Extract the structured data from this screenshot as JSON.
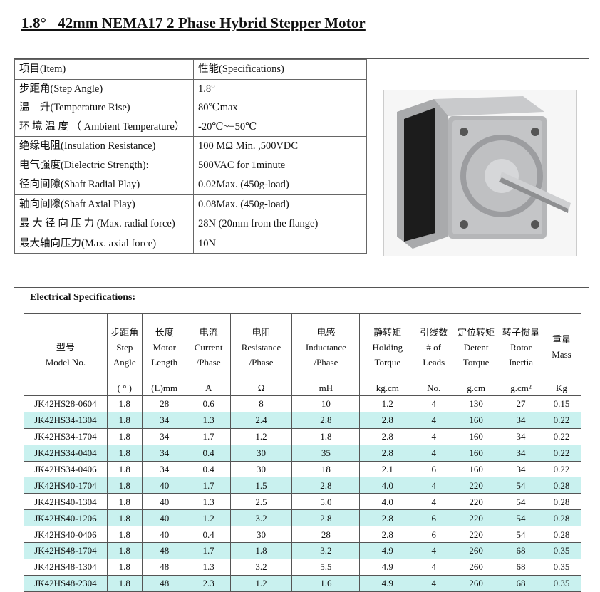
{
  "title": "1.8°   42mm NEMA17 2 Phase Hybrid Stepper Motor",
  "spec_table": {
    "header": [
      "项目(Item)",
      "性能(Specifications)"
    ],
    "rows": [
      {
        "item": "步距角(Step Angle)",
        "value": "1.8°"
      },
      {
        "item": "温　升(Temperature Rise)",
        "value": "80℃max"
      },
      {
        "item": "环 境 温 度 （ Ambient Temperature）",
        "value": "-20℃~+50℃"
      },
      {
        "item": "绝缘电阻(Insulation Resistance)",
        "value": "100 MΩ  Min. ,500VDC"
      },
      {
        "item": "电气强度(Dielectric Strength):",
        "value": "500VAC for 1minute"
      },
      {
        "item": "径向间隙(Shaft Radial Play)",
        "value": "0.02Max. (450g-load)"
      },
      {
        "item": "轴向间隙(Shaft Axial Play)",
        "value": "0.08Max. (450g-load)"
      },
      {
        "item": "最 大 径 向 压 力 (Max. radial force)",
        "value": "28N (20mm from the flange)"
      },
      {
        "item": "最大轴向压力(Max. axial force)",
        "value": "10N"
      }
    ]
  },
  "product_image": "stepper-motor-photo",
  "electrical": {
    "label": "Electrical Specifications:",
    "headers": [
      {
        "cn": "型号",
        "en": "Model No.",
        "unit": ""
      },
      {
        "cn": "步距角",
        "en": "Step Angle",
        "unit": "( ° )"
      },
      {
        "cn": "长度",
        "en": "Motor Length",
        "unit": "(L)mm"
      },
      {
        "cn": "电流",
        "en": "Current /Phase",
        "unit": "A"
      },
      {
        "cn": "电阻",
        "en": "Resistance /Phase",
        "unit": "Ω"
      },
      {
        "cn": "电感",
        "en": "Inductance /Phase",
        "unit": "mH"
      },
      {
        "cn": "静转矩",
        "en": "Holding Torque",
        "unit": "kg.cm"
      },
      {
        "cn": "引线数",
        "en": "# of Leads",
        "unit": "No."
      },
      {
        "cn": "定位转矩",
        "en": "Detent Torque",
        "unit": "g.cm"
      },
      {
        "cn": "转子惯量",
        "en": "Rotor Inertia",
        "unit": "g.cm²"
      },
      {
        "cn": "重量",
        "en": "Mass",
        "unit": "Kg"
      }
    ],
    "rows": [
      [
        "JK42HS28-0604",
        "1.8",
        "28",
        "0.6",
        "8",
        "10",
        "1.2",
        "4",
        "130",
        "27",
        "0.15"
      ],
      [
        "JK42HS34-1304",
        "1.8",
        "34",
        "1.3",
        "2.4",
        "2.8",
        "2.8",
        "4",
        "160",
        "34",
        "0.22"
      ],
      [
        "JK42HS34-1704",
        "1.8",
        "34",
        "1.7",
        "1.2",
        "1.8",
        "2.8",
        "4",
        "160",
        "34",
        "0.22"
      ],
      [
        "JK42HS34-0404",
        "1.8",
        "34",
        "0.4",
        "30",
        "35",
        "2.8",
        "4",
        "160",
        "34",
        "0.22"
      ],
      [
        "JK42HS34-0406",
        "1.8",
        "34",
        "0.4",
        "30",
        "18",
        "2.1",
        "6",
        "160",
        "34",
        "0.22"
      ],
      [
        "JK42HS40-1704",
        "1.8",
        "40",
        "1.7",
        "1.5",
        "2.8",
        "4.0",
        "4",
        "220",
        "54",
        "0.28"
      ],
      [
        "JK42HS40-1304",
        "1.8",
        "40",
        "1.3",
        "2.5",
        "5.0",
        "4.0",
        "4",
        "220",
        "54",
        "0.28"
      ],
      [
        "JK42HS40-1206",
        "1.8",
        "40",
        "1.2",
        "3.2",
        "2.8",
        "2.8",
        "6",
        "220",
        "54",
        "0.28"
      ],
      [
        "JK42HS40-0406",
        "1.8",
        "40",
        "0.4",
        "30",
        "28",
        "2.8",
        "6",
        "220",
        "54",
        "0.28"
      ],
      [
        "JK42HS48-1704",
        "1.8",
        "48",
        "1.7",
        "1.8",
        "3.2",
        "4.9",
        "4",
        "260",
        "68",
        "0.35"
      ],
      [
        "JK42HS48-1304",
        "1.8",
        "48",
        "1.3",
        "3.2",
        "5.5",
        "4.9",
        "4",
        "260",
        "68",
        "0.35"
      ],
      [
        "JK42HS48-2304",
        "1.8",
        "48",
        "2.3",
        "1.2",
        "1.6",
        "4.9",
        "4",
        "260",
        "68",
        "0.35"
      ]
    ]
  },
  "colors": {
    "alt_row": "#c9f1ef",
    "rule": "#555555"
  }
}
